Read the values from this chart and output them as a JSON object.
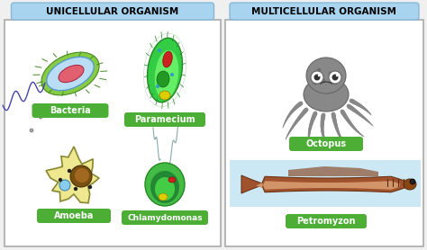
{
  "title_left": "UNICELLULAR ORGANISM",
  "title_right": "MULTICELLULAR ORGANISM",
  "label_bacteria": "Bacteria",
  "label_paramecium": "Paramecium",
  "label_amoeba": "Amoeba",
  "label_chlamydomonas": "Chlamydomonas",
  "label_octopus": "Octopus",
  "label_petromyzon": "Petromyzon",
  "green_label_color": "#4cae35",
  "white_text": "#ffffff",
  "title_bg_color": "#a8d4f0",
  "left_panel_bg": "#ffffff",
  "right_panel_bg": "#ffffff",
  "outer_bg": "#f0f0f0",
  "border_color": "#aaaaaa",
  "petromyzon_bg": "#cce8f5"
}
